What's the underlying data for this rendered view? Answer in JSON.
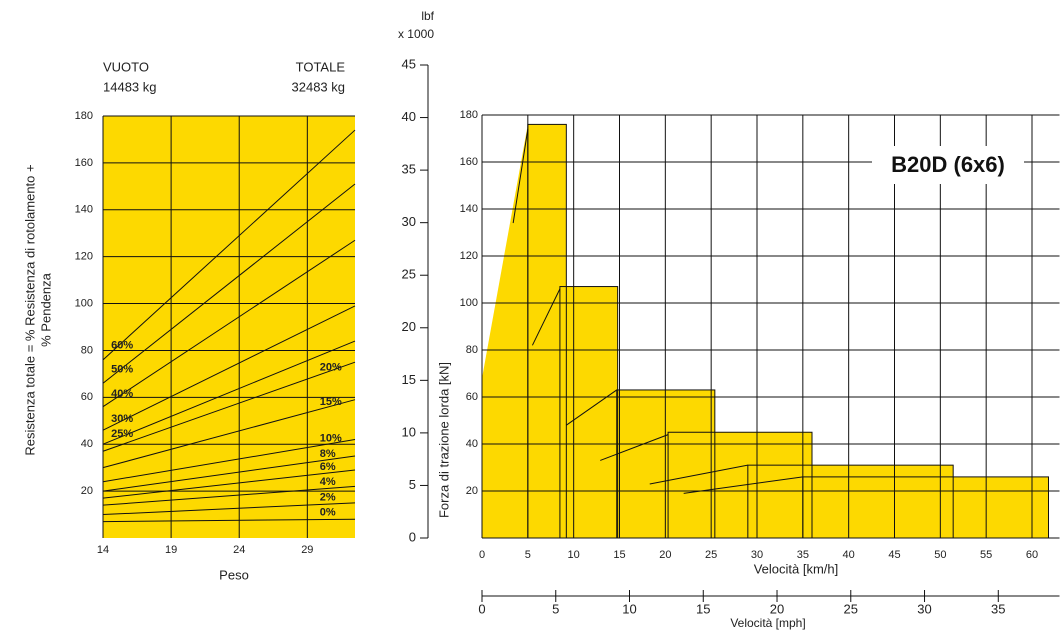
{
  "chart_data": [
    {
      "type": "line",
      "top_labels": [
        [
          "VUOTO",
          "14483 kg"
        ],
        [
          "TOTALE",
          "32483 kg"
        ]
      ],
      "y_label": [
        "Resistenza totale = % Resistenza di rotolamento +",
        "% Pendenza"
      ],
      "x_label": "Peso",
      "x": [
        14,
        32.5
      ],
      "xlim": [
        14,
        32.5
      ],
      "xticks": [
        14,
        19,
        24,
        29
      ],
      "ylim": [
        0,
        180
      ],
      "yticks": [
        20,
        40,
        60,
        80,
        100,
        120,
        140,
        160,
        180
      ],
      "grid": true,
      "color": "#fdd900",
      "series": [
        {
          "name": "60%",
          "values": [
            76,
            174
          ]
        },
        {
          "name": "50%",
          "values": [
            66,
            151
          ]
        },
        {
          "name": "40%",
          "values": [
            56,
            127
          ]
        },
        {
          "name": "30%",
          "values": [
            46,
            99
          ]
        },
        {
          "name": "25%",
          "values": [
            40,
            84
          ]
        },
        {
          "name": "20%",
          "values": [
            37,
            75
          ]
        },
        {
          "name": "15%",
          "values": [
            30,
            59
          ]
        },
        {
          "name": "10%",
          "values": [
            24,
            42
          ]
        },
        {
          "name": "8%",
          "values": [
            20,
            35
          ]
        },
        {
          "name": "6%",
          "values": [
            17,
            29
          ]
        },
        {
          "name": "4%",
          "values": [
            14,
            22
          ]
        },
        {
          "name": "2%",
          "values": [
            10,
            15
          ]
        },
        {
          "name": "0%",
          "values": [
            7,
            8
          ]
        }
      ]
    },
    {
      "type": "step",
      "badge": "B20D (6x6)",
      "y_label": "Forza di trazione lorda [kN]",
      "x_label": "Velocità [km/h]",
      "xlim": [
        0,
        63
      ],
      "xticks": [
        0,
        5,
        10,
        15,
        20,
        25,
        30,
        35,
        40,
        45,
        50,
        55,
        60
      ],
      "ylim": [
        0,
        180
      ],
      "yticks": [
        20,
        40,
        60,
        80,
        100,
        120,
        140,
        160,
        180
      ],
      "y2_label": [
        "lbf",
        "x 1000"
      ],
      "y2lim": [
        0,
        45
      ],
      "y2ticks": [
        0,
        5,
        10,
        15,
        20,
        25,
        30,
        35,
        40,
        45
      ],
      "x2_label": "Velocità [mph]",
      "x2lim": [
        0,
        39.15
      ],
      "x2ticks": [
        0,
        5,
        10,
        15,
        20,
        25,
        30,
        35
      ],
      "grid": true,
      "color": "#fdd900",
      "wedge": {
        "x": [
          0,
          5.0
        ],
        "y": [
          68,
          176
        ]
      },
      "gears": [
        {
          "x": [
            5.0,
            9.2
          ],
          "y": 176
        },
        {
          "x": [
            8.5,
            14.8
          ],
          "y": 107
        },
        {
          "x": [
            14.7,
            25.4
          ],
          "y": 63
        },
        {
          "x": [
            20.3,
            36.0
          ],
          "y": 45
        },
        {
          "x": [
            29.0,
            51.4
          ],
          "y": 31
        },
        {
          "x": [
            35.0,
            61.8
          ],
          "y": 26
        }
      ],
      "transitions": [
        {
          "x": [
            3.4,
            5.0
          ],
          "y": [
            134,
            174
          ]
        },
        {
          "x": [
            5.5,
            8.5
          ],
          "y": [
            82,
            106
          ]
        },
        {
          "x": [
            9.2,
            14.7
          ],
          "y": [
            48,
            63
          ]
        },
        {
          "x": [
            12.9,
            20.3
          ],
          "y": [
            33,
            44
          ]
        },
        {
          "x": [
            18.3,
            29.0
          ],
          "y": [
            23,
            31
          ]
        },
        {
          "x": [
            22.0,
            35.0
          ],
          "y": [
            19,
            26
          ]
        }
      ]
    }
  ]
}
